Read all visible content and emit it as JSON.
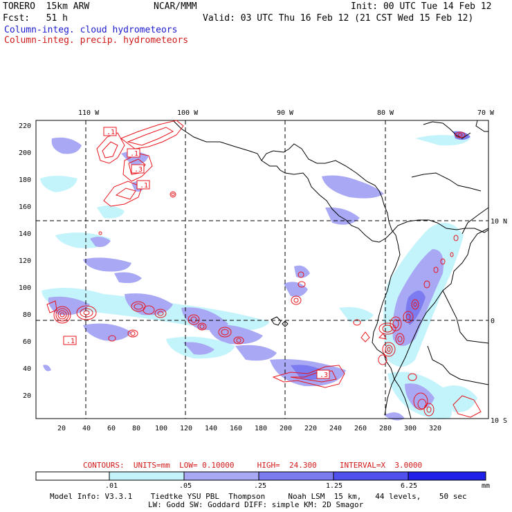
{
  "header": {
    "model": "TORERO  15km ARW",
    "org": "NCAR/MMM",
    "init": "Init: 00 UTC Tue 14 Feb 12",
    "fcst": "Fcst:   51 h",
    "valid": "Valid: 03 UTC Thu 16 Feb 12 (21 CST Wed 15 Feb 12)",
    "field_blue": "Column-integ. cloud hydrometeors",
    "field_red": "Column-integ. precip. hydrometeors"
  },
  "colors": {
    "cloud_1": "#e2fbff",
    "cloud_2": "#c4f4fb",
    "cloud_3": "#a8a8f4",
    "cloud_4": "#7c7cf0",
    "cloud_5": "#5050ee",
    "cloud_6": "#2020e8",
    "contour": "#e8141c",
    "coast": "#000000"
  },
  "map": {
    "top_lon_labels": [
      "110 W",
      "100 W",
      "90 W",
      "80 W",
      "70 W"
    ],
    "right_lat_labels": [
      "10 N",
      "0",
      "10 S"
    ],
    "y_grid_labels": [
      "220",
      "200",
      "180",
      "160",
      "140",
      "120",
      "100",
      "80",
      "60",
      "40",
      "20"
    ],
    "x_grid_labels": [
      "20",
      "40",
      "60",
      "80",
      "100",
      "120",
      "140",
      "160",
      "180",
      "200",
      "220",
      "240",
      "260",
      "280",
      "300",
      "320"
    ],
    "contour_labels": [
      ".1",
      ".1",
      ".3",
      ".1",
      ".1",
      ".3"
    ]
  },
  "contour_info": {
    "text": "CONTOURS:  UNITS=mm  LOW= 0.10000     HIGH=  24.300     INTERVAL=X  3.0000"
  },
  "colorbar": {
    "ticks": [
      ".01",
      ".05",
      ".25",
      "1.25",
      "6.25"
    ],
    "units": "mm"
  },
  "footer": {
    "line1": "Model Info: V3.3.1    Tiedtke YSU PBL  Thompson     Noah LSM  15 km,   44 levels,    50 sec",
    "line2": "LW: Godd SW: Goddard DIFF: simple KM: 2D Smagor"
  }
}
